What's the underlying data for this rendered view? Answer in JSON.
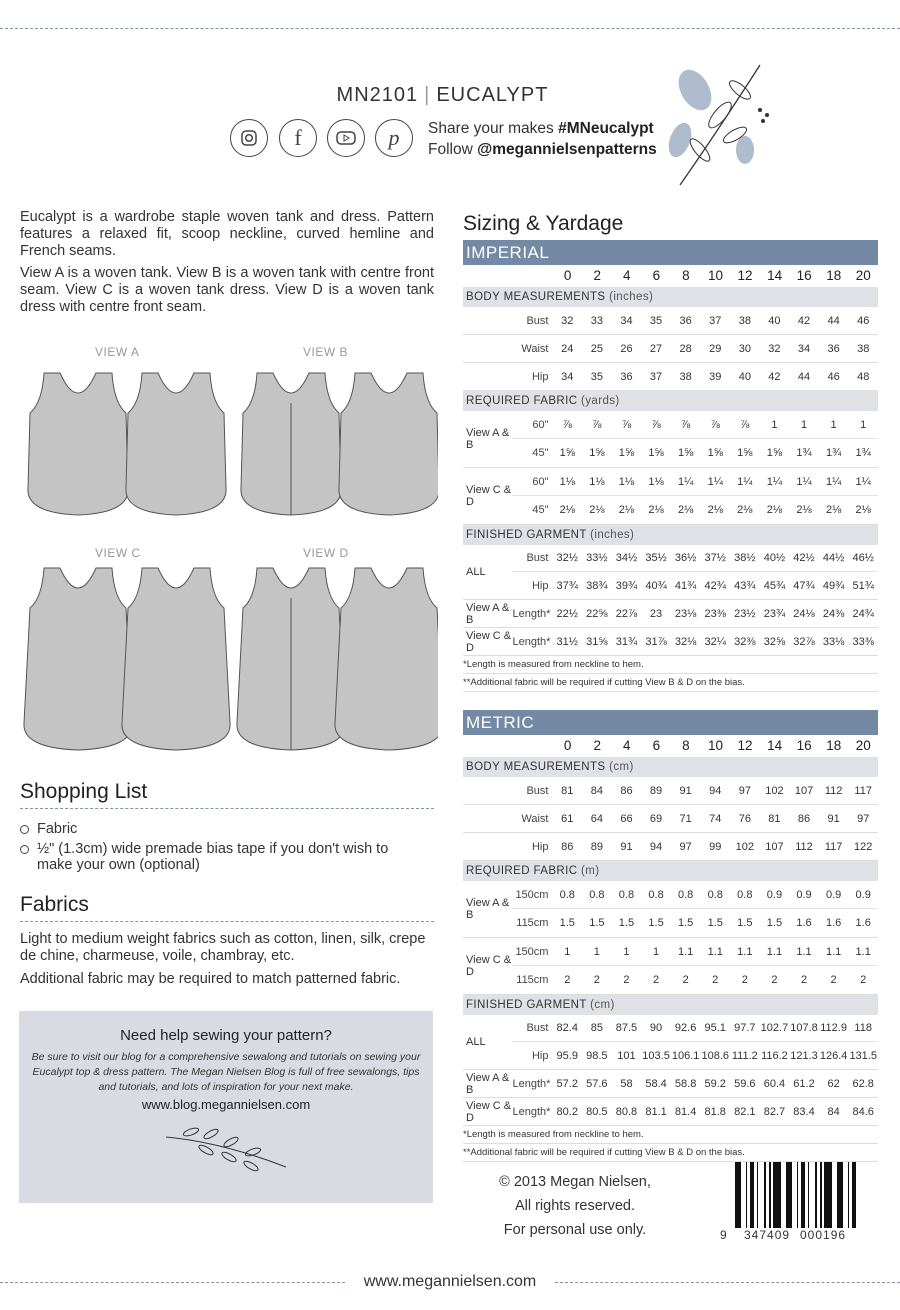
{
  "header": {
    "code": "MN2101",
    "separator": "|",
    "name": "EUCALYPT",
    "share_prefix": "Share your makes ",
    "share_tag": "#MNeucalypt",
    "follow_prefix": "Follow ",
    "follow_handle": "@megannielsenpatterns",
    "social_icons": [
      "instagram-icon",
      "facebook-icon",
      "youtube-icon",
      "pinterest-icon"
    ]
  },
  "intro": [
    "Eucalypt is a wardrobe staple woven tank and dress. Pattern features a relaxed fit, scoop neckline, curved hemline and French seams.",
    "View A is a woven tank. View B is a woven tank with centre front seam. View C is a woven tank dress. View D is a woven tank dress with centre front seam."
  ],
  "views": [
    "VIEW A",
    "VIEW B",
    "VIEW C",
    "VIEW D"
  ],
  "shopping": {
    "title": "Shopping List",
    "items": [
      "Fabric",
      "½\" (1.3cm) wide premade bias tape if you don't wish to make your own (optional)"
    ]
  },
  "fabrics": {
    "title": "Fabrics",
    "paragraphs": [
      "Light to medium weight fabrics such as cotton, linen, silk, crepe de chine, charmeuse, voile, chambray, etc.",
      "Additional fabric may be required to match patterned fabric."
    ]
  },
  "help": {
    "title": "Need help sewing your pattern?",
    "body": "Be sure to visit our blog for a comprehensive sewalong and tutorials on sewing your Eucalypt top & dress pattern. The Megan Nielsen Blog is full of free sewalongs, tips and tutorials, and lots of inspiration for your next make.",
    "url": "www.blog.megannielsen.com"
  },
  "sizing_title": "Sizing & Yardage",
  "tables": [
    {
      "title": "IMPERIAL",
      "sizes": [
        "0",
        "2",
        "4",
        "6",
        "8",
        "10",
        "12",
        "14",
        "16",
        "18",
        "20"
      ],
      "sections": [
        {
          "heading": "BODY MEASUREMENTS",
          "unit": "(inches)",
          "groups": [
            {
              "label": "",
              "rows": [
                {
                  "sub": "Bust",
                  "v": [
                    "32",
                    "33",
                    "34",
                    "35",
                    "36",
                    "37",
                    "38",
                    "40",
                    "42",
                    "44",
                    "46"
                  ]
                }
              ]
            },
            {
              "label": "",
              "rows": [
                {
                  "sub": "Waist",
                  "v": [
                    "24",
                    "25",
                    "26",
                    "27",
                    "28",
                    "29",
                    "30",
                    "32",
                    "34",
                    "36",
                    "38"
                  ]
                }
              ]
            },
            {
              "label": "",
              "rows": [
                {
                  "sub": "Hip",
                  "v": [
                    "34",
                    "35",
                    "36",
                    "37",
                    "38",
                    "39",
                    "40",
                    "42",
                    "44",
                    "46",
                    "48"
                  ]
                }
              ]
            }
          ]
        },
        {
          "heading": "REQUIRED FABRIC",
          "unit": "(yards)",
          "groups": [
            {
              "label": "View A & B",
              "rows": [
                {
                  "sub": "60\"",
                  "v": [
                    "⅞",
                    "⅞",
                    "⅞",
                    "⅞",
                    "⅞",
                    "⅞",
                    "⅞",
                    "1",
                    "1",
                    "1",
                    "1"
                  ]
                },
                {
                  "sub": "45\"",
                  "v": [
                    "1⅝",
                    "1⅝",
                    "1⅝",
                    "1⅝",
                    "1⅝",
                    "1⅝",
                    "1⅝",
                    "1⅝",
                    "1¾",
                    "1¾",
                    "1¾"
                  ]
                }
              ]
            },
            {
              "label": "View C & D",
              "rows": [
                {
                  "sub": "60\"",
                  "v": [
                    "1⅛",
                    "1⅛",
                    "1⅛",
                    "1⅛",
                    "1¼",
                    "1¼",
                    "1¼",
                    "1¼",
                    "1¼",
                    "1¼",
                    "1¼"
                  ]
                },
                {
                  "sub": "45\"",
                  "v": [
                    "2⅛",
                    "2⅛",
                    "2⅛",
                    "2⅛",
                    "2⅛",
                    "2⅛",
                    "2⅛",
                    "2⅛",
                    "2⅛",
                    "2⅛",
                    "2⅛"
                  ]
                }
              ]
            }
          ]
        },
        {
          "heading": "FINISHED GARMENT",
          "unit": "(inches)",
          "groups": [
            {
              "label": "ALL",
              "rows": [
                {
                  "sub": "Bust",
                  "v": [
                    "32½",
                    "33½",
                    "34½",
                    "35½",
                    "36½",
                    "37½",
                    "38½",
                    "40½",
                    "42½",
                    "44½",
                    "46½"
                  ]
                },
                {
                  "sub": "Hip",
                  "v": [
                    "37¾",
                    "38¾",
                    "39¾",
                    "40¾",
                    "41¾",
                    "42¾",
                    "43¾",
                    "45¾",
                    "47¾",
                    "49¾",
                    "51¾"
                  ]
                }
              ]
            },
            {
              "label": "View A & B",
              "rows": [
                {
                  "sub": "Length*",
                  "v": [
                    "22½",
                    "22⅝",
                    "22⅞",
                    "23",
                    "23⅛",
                    "23⅜",
                    "23½",
                    "23¾",
                    "24⅛",
                    "24⅜",
                    "24¾"
                  ]
                }
              ]
            },
            {
              "label": "View C & D",
              "rows": [
                {
                  "sub": "Length*",
                  "v": [
                    "31½",
                    "31⅝",
                    "31¾",
                    "31⅞",
                    "32⅛",
                    "32¼",
                    "32⅜",
                    "32⅝",
                    "32⅞",
                    "33⅛",
                    "33⅜"
                  ]
                }
              ]
            }
          ]
        }
      ],
      "notes": [
        "*Length is measured from neckline to hem.",
        "**Additional fabric will be required if cutting View B & D on the bias."
      ]
    },
    {
      "title": "METRIC",
      "sizes": [
        "0",
        "2",
        "4",
        "6",
        "8",
        "10",
        "12",
        "14",
        "16",
        "18",
        "20"
      ],
      "sections": [
        {
          "heading": "BODY MEASUREMENTS",
          "unit": "(cm)",
          "groups": [
            {
              "label": "",
              "rows": [
                {
                  "sub": "Bust",
                  "v": [
                    "81",
                    "84",
                    "86",
                    "89",
                    "91",
                    "94",
                    "97",
                    "102",
                    "107",
                    "112",
                    "117"
                  ]
                }
              ]
            },
            {
              "label": "",
              "rows": [
                {
                  "sub": "Waist",
                  "v": [
                    "61",
                    "64",
                    "66",
                    "69",
                    "71",
                    "74",
                    "76",
                    "81",
                    "86",
                    "91",
                    "97"
                  ]
                }
              ]
            },
            {
              "label": "",
              "rows": [
                {
                  "sub": "Hip",
                  "v": [
                    "86",
                    "89",
                    "91",
                    "94",
                    "97",
                    "99",
                    "102",
                    "107",
                    "112",
                    "117",
                    "122"
                  ]
                }
              ]
            }
          ]
        },
        {
          "heading": "REQUIRED FABRIC",
          "unit": "(m)",
          "groups": [
            {
              "label": "View A & B",
              "rows": [
                {
                  "sub": "150cm",
                  "v": [
                    "0.8",
                    "0.8",
                    "0.8",
                    "0.8",
                    "0.8",
                    "0.8",
                    "0.8",
                    "0.9",
                    "0.9",
                    "0.9",
                    "0.9"
                  ]
                },
                {
                  "sub": "115cm",
                  "v": [
                    "1.5",
                    "1.5",
                    "1.5",
                    "1.5",
                    "1.5",
                    "1.5",
                    "1.5",
                    "1.5",
                    "1.6",
                    "1.6",
                    "1.6"
                  ]
                }
              ]
            },
            {
              "label": "View C & D",
              "rows": [
                {
                  "sub": "150cm",
                  "v": [
                    "1",
                    "1",
                    "1",
                    "1",
                    "1.1",
                    "1.1",
                    "1.1",
                    "1.1",
                    "1.1",
                    "1.1",
                    "1.1"
                  ]
                },
                {
                  "sub": "115cm",
                  "v": [
                    "2",
                    "2",
                    "2",
                    "2",
                    "2",
                    "2",
                    "2",
                    "2",
                    "2",
                    "2",
                    "2"
                  ]
                }
              ]
            }
          ]
        },
        {
          "heading": "FINISHED GARMENT",
          "unit": "(cm)",
          "groups": [
            {
              "label": "ALL",
              "rows": [
                {
                  "sub": "Bust",
                  "v": [
                    "82.4",
                    "85",
                    "87.5",
                    "90",
                    "92.6",
                    "95.1",
                    "97.7",
                    "102.7",
                    "107.8",
                    "112.9",
                    "118"
                  ]
                },
                {
                  "sub": "Hip",
                  "v": [
                    "95.9",
                    "98.5",
                    "101",
                    "103.5",
                    "106.1",
                    "108.6",
                    "111.2",
                    "116.2",
                    "121.3",
                    "126.4",
                    "131.5"
                  ]
                }
              ]
            },
            {
              "label": "View A & B",
              "rows": [
                {
                  "sub": "Length*",
                  "v": [
                    "57.2",
                    "57.6",
                    "58",
                    "58.4",
                    "58.8",
                    "59.2",
                    "59.6",
                    "60.4",
                    "61.2",
                    "62",
                    "62.8"
                  ]
                }
              ]
            },
            {
              "label": "View C & D",
              "rows": [
                {
                  "sub": "Length*",
                  "v": [
                    "80.2",
                    "80.5",
                    "80.8",
                    "81.1",
                    "81.4",
                    "81.8",
                    "82.1",
                    "82.7",
                    "83.4",
                    "84",
                    "84.6"
                  ]
                }
              ]
            }
          ]
        }
      ],
      "notes": [
        "*Length is measured from neckline to hem.",
        "**Additional fabric will be required if cutting View B & D on the bias."
      ]
    }
  ],
  "copyright": [
    "© 2013 Megan Nielsen,",
    "All rights reserved.",
    "For personal use only."
  ],
  "barcode": {
    "digits_left": "9",
    "digits_mid": "347409",
    "digits_right": "000196"
  },
  "footer": "www.megannielsen.com",
  "colors": {
    "table_header": "#7489a3",
    "section_bg": "#dfe1e6",
    "help_bg": "#d8dbe2",
    "garment": "#c4c4c4"
  }
}
